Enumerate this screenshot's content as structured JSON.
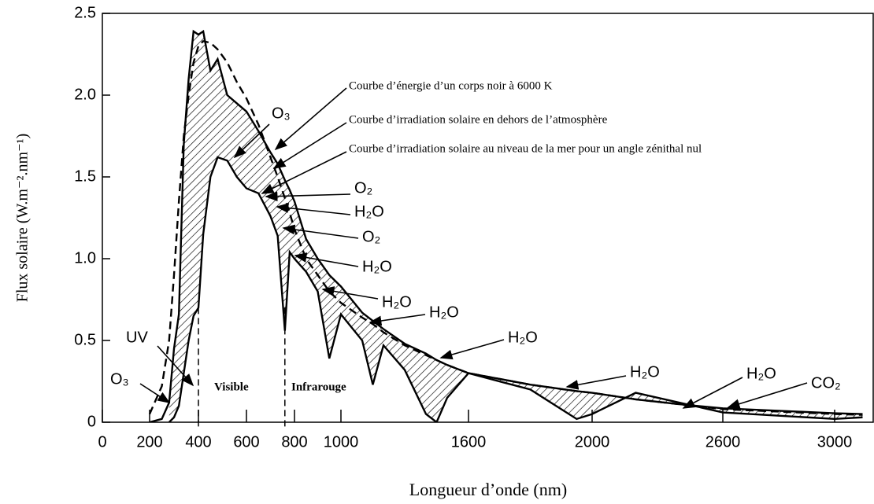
{
  "chart_data": {
    "type": "line",
    "x_label": "Longueur d’onde (nm)",
    "y_label": "Flux solaire (W.m⁻².nm⁻¹)",
    "x": [
      200,
      250,
      280,
      300,
      320,
      340,
      360,
      380,
      400,
      420,
      450,
      480,
      520,
      560,
      600,
      650,
      700,
      730,
      760,
      780,
      800,
      850,
      900,
      950,
      1000,
      1100,
      1150,
      1200,
      1300,
      1400,
      1450,
      1500,
      1600,
      1800,
      1950,
      2000,
      2200,
      2400,
      2600,
      2800,
      3000,
      3100
    ],
    "series": [
      {
        "name": "Courbe d’énergie d’un corps noir à 6000 K",
        "color": "#000000",
        "dash": true,
        "values": [
          0.05,
          0.22,
          0.5,
          0.9,
          1.35,
          1.75,
          2.0,
          2.2,
          2.3,
          2.33,
          2.32,
          2.28,
          2.2,
          2.08,
          1.98,
          1.82,
          1.62,
          1.5,
          1.37,
          1.28,
          1.18,
          1.0,
          0.9,
          0.8,
          0.73,
          0.64,
          0.6,
          0.55,
          0.47,
          0.41,
          0.38,
          0.35,
          0.3,
          0.23,
          0.19,
          0.18,
          0.14,
          0.11,
          0.08,
          0.065,
          0.05,
          0.045
        ]
      },
      {
        "name": "Courbe d’irradiation solaire en dehors de l’atmosphère",
        "color": "#000000",
        "dash": false,
        "values": [
          0,
          0.02,
          0.12,
          0.45,
          0.66,
          1.7,
          2.1,
          2.39,
          2.37,
          2.39,
          2.15,
          2.22,
          2.0,
          1.95,
          1.9,
          1.78,
          1.65,
          1.58,
          1.48,
          1.42,
          1.35,
          1.12,
          1.0,
          0.9,
          0.83,
          0.67,
          0.62,
          0.57,
          0.48,
          0.42,
          0.38,
          0.35,
          0.3,
          0.23,
          0.19,
          0.18,
          0.14,
          0.11,
          0.085,
          0.07,
          0.055,
          0.05
        ]
      },
      {
        "name": "Courbe d’irradiation solaire au niveau de la mer pour un angle zénithal nul",
        "color": "#000000",
        "dash": false,
        "values": [
          null,
          null,
          0,
          0.03,
          0.1,
          0.3,
          0.5,
          0.65,
          0.7,
          1.15,
          1.5,
          1.62,
          1.6,
          1.5,
          1.43,
          1.4,
          1.26,
          1.14,
          0.56,
          1.04,
          1.0,
          0.92,
          0.8,
          0.39,
          0.66,
          0.5,
          0.23,
          0.47,
          0.32,
          0.05,
          0,
          0.15,
          0.3,
          0.2,
          0.02,
          0.05,
          0.18,
          0.12,
          0.06,
          0.04,
          0.02,
          0.03
        ]
      }
    ],
    "region_boundaries": [
      400,
      760
    ],
    "xlim": [
      0,
      3140
    ],
    "xticks": [
      0,
      200,
      400,
      600,
      800,
      1000,
      1600,
      2000,
      2600,
      3000
    ],
    "ylim": [
      0,
      2.5
    ],
    "yticks": [
      0,
      0.5,
      {
        "value": 1,
        "label": "1.0"
      },
      1.5,
      {
        "value": 2,
        "label": "2.0"
      },
      2.5
    ],
    "annotations": [
      "Courbe d’énergie d’un corps noir à 6000 K",
      "Courbe d’irradiation solaire en dehors de l’atmosphère",
      "Courbe d’irradiation solaire au niveau de la mer pour un angle zénithal nul",
      "O₃",
      "O₂",
      "H₂O",
      "O₂",
      "H₂O",
      "H₂O",
      "H₂O",
      "H₂O",
      "H₂O",
      "H₂O",
      "CO₂",
      "UV",
      "O₃",
      "Visible",
      "Infrarouge"
    ]
  }
}
